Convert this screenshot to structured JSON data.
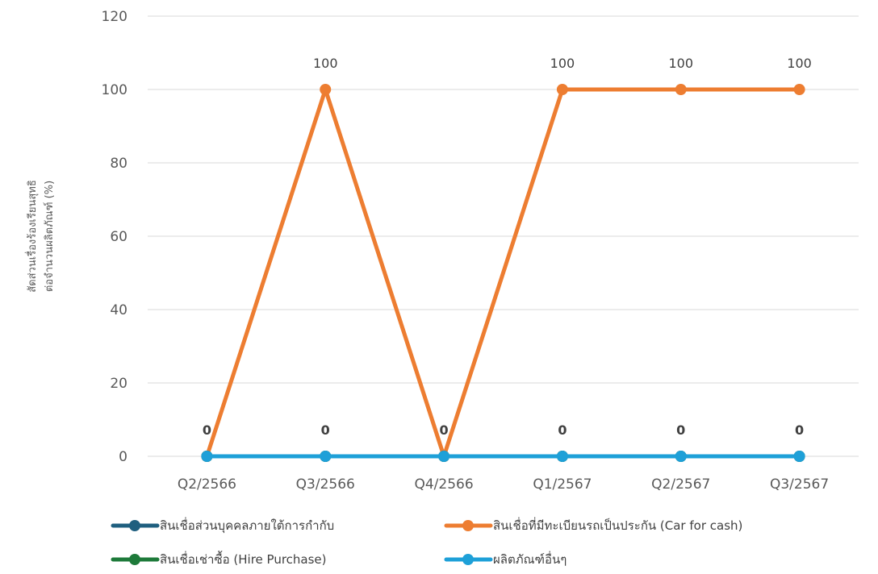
{
  "chart_data": {
    "type": "line",
    "categories": [
      "Q2/2566",
      "Q3/2566",
      "Q4/2566",
      "Q1/2567",
      "Q2/2567",
      "Q3/2567"
    ],
    "ylabel_lines": [
      "สัดส่วนเรื่องร้องเรียนสุทธิ",
      "ต่อจำนวนผลิตภัณฑ์ (%)"
    ],
    "ylim": [
      0,
      120
    ],
    "yticks": [
      0,
      20,
      40,
      60,
      80,
      100,
      120
    ],
    "grid": true,
    "legend_position": "bottom",
    "series": [
      {
        "name": "สินเชื่อส่วนบุคคลภายใต้การกำกับ",
        "values": [
          0,
          0,
          0,
          0,
          0,
          0
        ],
        "color": "#1f5f7f"
      },
      {
        "name": "สินเชื่อที่มีทะเบียนรถเป็นประกัน (Car for cash)",
        "values": [
          0,
          100,
          0,
          100,
          100,
          100
        ],
        "color": "#ed7d31"
      },
      {
        "name": "สินเชื่อเช่าซื้อ (Hire Purchase)",
        "values": [
          0,
          0,
          0,
          0,
          0,
          0
        ],
        "color": "#1e7a3a"
      },
      {
        "name": "ผลิตภัณฑ์อื่นๆ",
        "values": [
          0,
          0,
          0,
          0,
          0,
          0
        ],
        "color": "#1ea0d8"
      }
    ],
    "data_labels": [
      {
        "category": "Q2/2566",
        "value": 0,
        "text": "0",
        "bold": true
      },
      {
        "category": "Q3/2566",
        "value": 0,
        "text": "0",
        "bold": true
      },
      {
        "category": "Q4/2566",
        "value": 0,
        "text": "0",
        "bold": true
      },
      {
        "category": "Q1/2567",
        "value": 0,
        "text": "0",
        "bold": true
      },
      {
        "category": "Q2/2567",
        "value": 0,
        "text": "0",
        "bold": true
      },
      {
        "category": "Q3/2567",
        "value": 0,
        "text": "0",
        "bold": true
      },
      {
        "category": "Q3/2566",
        "value": 100,
        "text": "100",
        "bold": false
      },
      {
        "category": "Q1/2567",
        "value": 100,
        "text": "100",
        "bold": false
      },
      {
        "category": "Q2/2567",
        "value": 100,
        "text": "100",
        "bold": false
      },
      {
        "category": "Q3/2567",
        "value": 100,
        "text": "100",
        "bold": false
      }
    ]
  }
}
